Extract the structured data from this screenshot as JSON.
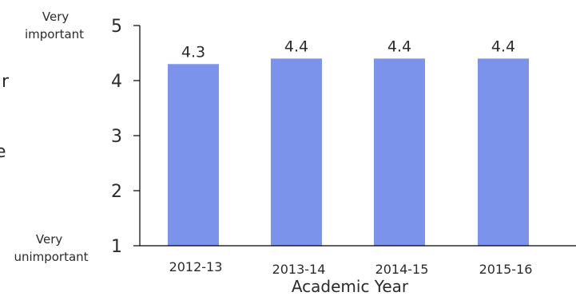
{
  "chart_data": {
    "type": "bar",
    "categories": [
      "2012-13",
      "2013-14",
      "2014-15",
      "2015-16"
    ],
    "values": [
      4.3,
      4.4,
      4.4,
      4.4
    ],
    "data_labels": [
      "4.3",
      "4.4",
      "4.4",
      "4.4"
    ],
    "xlabel": "Academic Year",
    "ylabel": "",
    "ylim": [
      1,
      5
    ],
    "yticks": [
      1,
      2,
      3,
      4,
      5
    ],
    "y_anchor_labels": {
      "top": [
        "Very",
        "important"
      ],
      "bottom": [
        "Very",
        "unimportant"
      ]
    },
    "cut_off_text": [
      "r",
      "e"
    ],
    "bar_color": "#7b93ea",
    "axis_color": "#000000",
    "grid": false
  }
}
